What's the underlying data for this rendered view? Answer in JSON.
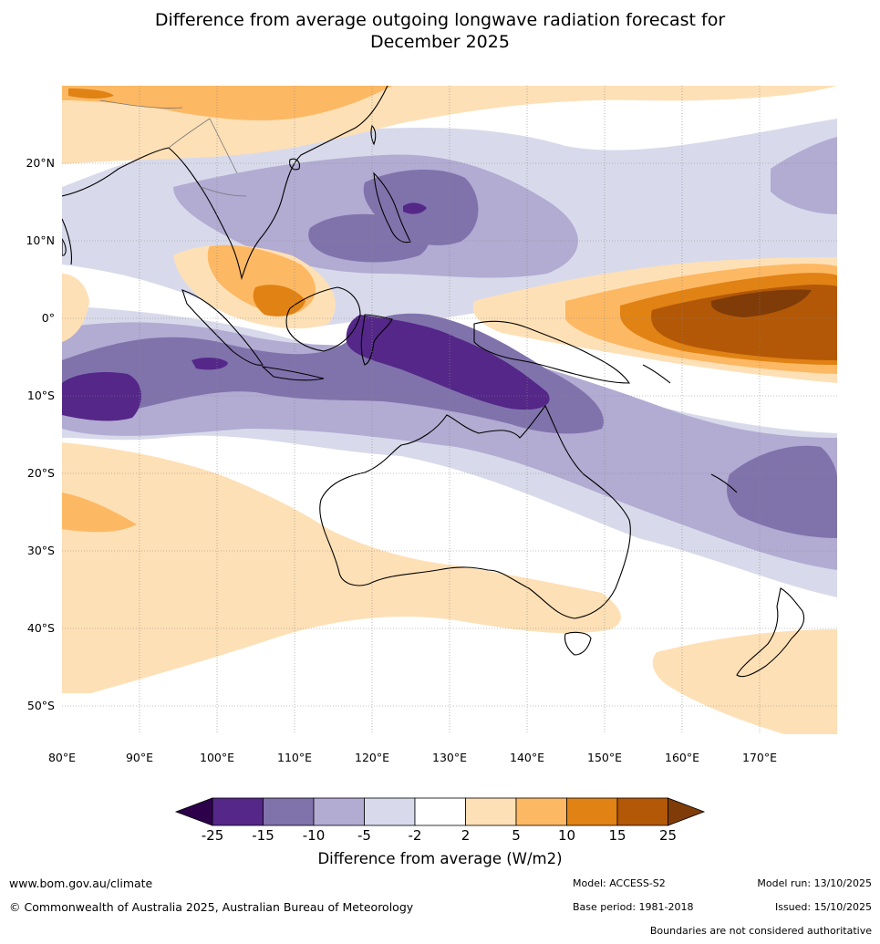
{
  "title": {
    "line1": "Difference from average outgoing longwave radiation forecast for",
    "line2": "December 2025"
  },
  "map": {
    "lat_labels": [
      "20°N",
      "10°N",
      "0°",
      "10°S",
      "20°S",
      "30°S",
      "40°S",
      "50°S"
    ],
    "lon_labels": [
      "80°E",
      "90°E",
      "100°E",
      "110°E",
      "120°E",
      "130°E",
      "140°E",
      "150°E",
      "160°E",
      "170°E"
    ]
  },
  "colorbar": {
    "title": "Difference from average (W/m2)",
    "ticks": [
      "-25",
      "-15",
      "-10",
      "-5",
      "-2",
      "2",
      "5",
      "10",
      "15",
      "25"
    ],
    "colors": {
      "below_min": "#2d004b",
      "c1": "#542788",
      "c2": "#8073ac",
      "c3": "#b2abd2",
      "c4": "#d8daeb",
      "c5": "#ffffff",
      "c6": "#fee0b6",
      "c7": "#fdb863",
      "c8": "#e08214",
      "c9": "#b35806",
      "above_max": "#7f3b08"
    }
  },
  "footer": {
    "website": "www.bom.gov.au/climate",
    "copyright": "© Commonwealth of Australia 2025, Australian Bureau of Meteorology",
    "model": "Model: ACCESS-S2",
    "base_period": "Base period: 1981-2018",
    "model_run": "Model run: 13/10/2025",
    "issued": "Issued: 15/10/2025",
    "disclaimer": "Boundaries are not considered authoritative"
  }
}
